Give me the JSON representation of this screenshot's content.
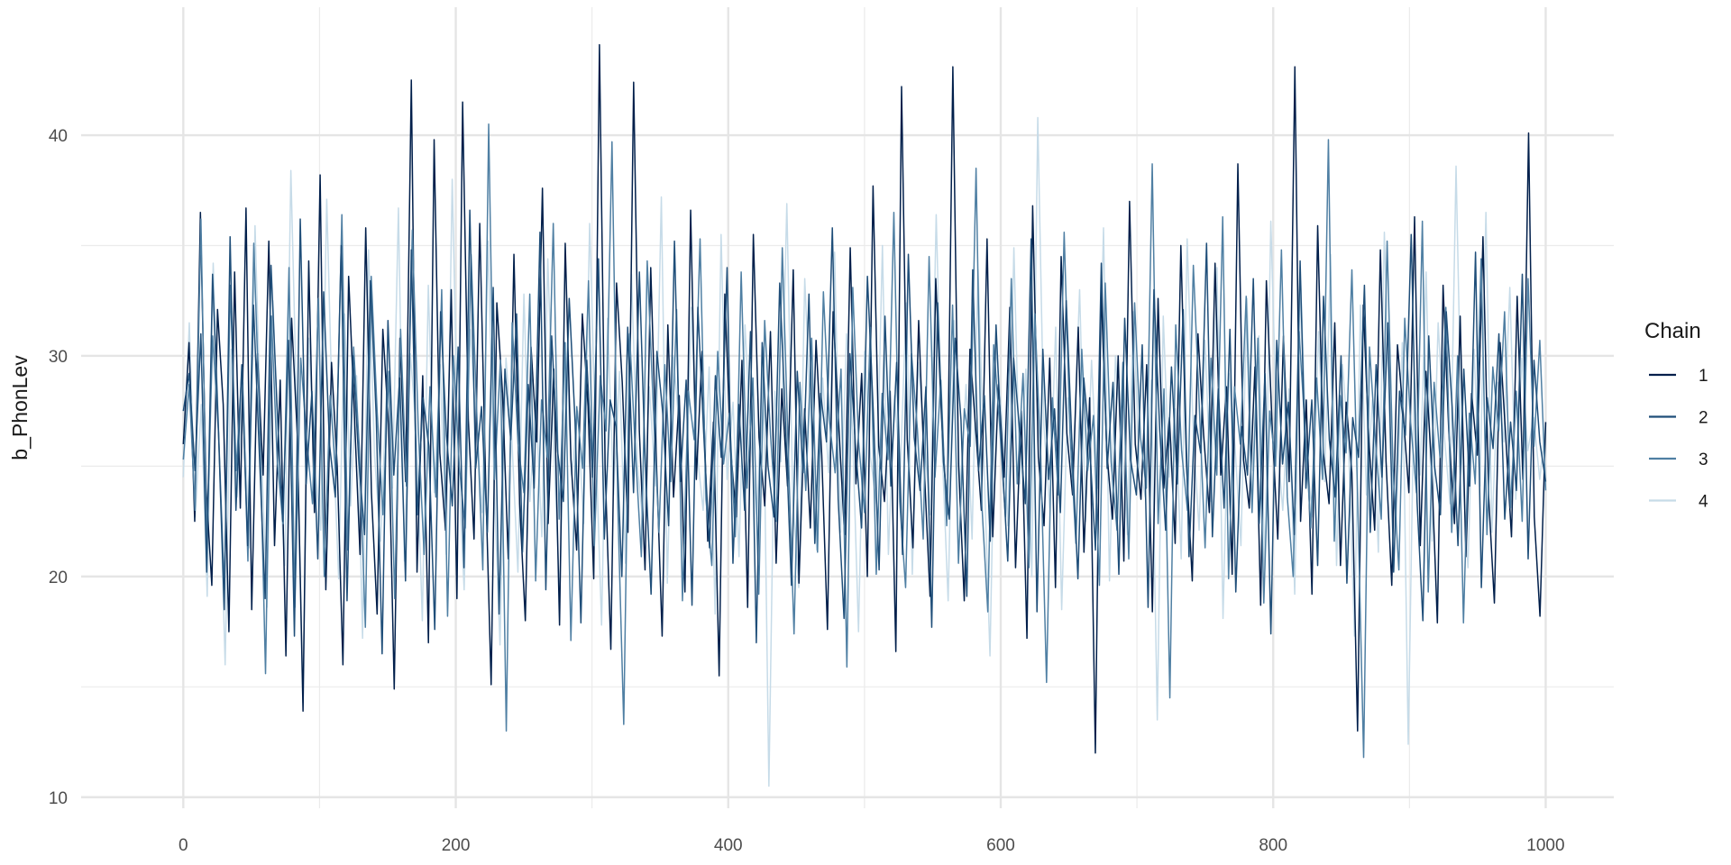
{
  "chart_data": {
    "type": "line",
    "title": "",
    "xlabel": "",
    "ylabel": "b_PhonLev",
    "xlim": [
      -75,
      1050
    ],
    "ylim": [
      9.5,
      45.8
    ],
    "x_ticks": [
      0,
      200,
      400,
      600,
      800,
      1000
    ],
    "x_tick_labels": [
      "0",
      "200",
      "400",
      "600",
      "800",
      "1000"
    ],
    "x_minor_ticks": [
      100,
      300,
      500,
      700,
      900
    ],
    "y_ticks": [
      10,
      20,
      30,
      40
    ],
    "y_tick_labels": [
      "10",
      "20",
      "30",
      "40"
    ],
    "y_minor_ticks": [
      15,
      25,
      35
    ],
    "grid": true,
    "legend": {
      "title": "Chain",
      "placement": "right"
    },
    "draw_order": [
      3,
      0,
      2,
      1
    ],
    "series": [
      {
        "name": "1",
        "color": "#011f4b",
        "values": [
          26.0,
          30.6,
          22.5,
          36.5,
          24.0,
          19.6,
          32.1,
          27.8,
          17.5,
          33.8,
          23.1,
          36.7,
          18.5,
          30.1,
          24.6,
          35.2,
          21.4,
          28.9,
          16.4,
          31.7,
          26.4,
          13.9,
          34.3,
          22.9,
          38.2,
          19.4,
          29.7,
          25.0,
          16.0,
          33.6,
          27.4,
          21.0,
          35.8,
          23.8,
          18.3,
          31.2,
          26.9,
          14.9,
          30.8,
          24.3,
          42.5,
          20.2,
          29.1,
          17.0,
          39.8,
          25.6,
          22.1,
          33.0,
          19.0,
          41.5,
          27.1,
          21.7,
          36.0,
          24.7,
          15.1,
          32.4,
          28.3,
          20.8,
          34.6,
          23.3,
          18.0,
          30.4,
          26.1,
          37.6,
          22.4,
          29.4,
          17.8,
          35.1,
          25.3,
          21.2,
          31.9,
          27.7,
          19.9,
          44.1,
          24.9,
          16.7,
          33.3,
          28.8,
          22.0,
          42.4,
          26.6,
          20.3,
          34.0,
          25.2,
          17.3,
          31.4,
          23.6,
          28.2,
          19.3,
          36.6,
          24.4,
          30.2,
          21.6,
          27.0,
          15.5,
          32.8,
          25.8,
          22.7,
          29.8,
          18.6,
          35.5,
          26.3,
          23.2,
          31.1,
          20.6,
          28.5,
          24.1,
          33.9,
          19.7,
          27.6,
          22.2,
          30.7,
          25.5,
          17.6,
          32.0,
          26.8,
          21.9,
          34.9,
          24.2,
          29.2,
          20.0,
          37.7,
          25.9,
          23.4,
          28.4,
          16.6,
          42.2,
          26.2,
          21.3,
          31.6,
          24.8,
          19.1,
          33.5,
          27.3,
          22.8,
          43.1,
          25.1,
          18.9,
          30.3,
          26.7,
          23.0,
          35.3,
          21.8,
          28.7,
          24.5,
          32.2,
          20.4,
          27.5,
          17.2,
          36.8,
          25.4,
          22.3,
          29.9,
          19.5,
          34.5,
          26.5,
          23.7,
          31.3,
          21.1,
          28.1,
          12.0,
          33.1,
          25.7,
          22.6,
          30.0,
          20.7,
          37.0,
          26.0,
          23.5,
          29.6,
          18.4,
          32.6,
          24.0,
          27.2,
          21.5,
          35.0,
          25.0,
          19.8,
          31.0,
          26.4,
          22.9,
          34.2,
          24.6,
          28.6,
          20.1,
          38.7,
          25.3,
          23.1,
          29.5,
          18.7,
          33.4,
          26.9,
          21.7,
          30.9,
          24.3,
          43.1,
          22.5,
          28.0,
          19.2,
          35.9,
          25.6,
          23.3,
          31.5,
          20.5,
          27.9,
          24.7,
          13.0,
          32.3,
          26.1,
          22.1,
          34.8,
          25.2,
          19.6,
          30.5,
          27.4,
          23.8,
          36.3,
          21.4,
          29.3,
          24.9,
          17.9,
          33.2,
          26.6,
          22.4,
          31.8,
          20.9,
          28.3,
          25.5,
          35.4,
          23.6,
          18.8,
          30.6,
          26.3,
          21.8,
          32.7,
          24.4,
          40.1,
          22.7,
          18.2,
          27.0
        ]
      },
      {
        "name": "2",
        "color": "#1f4e79",
        "values": [
          27.5,
          29.2,
          24.8,
          31.0,
          20.2,
          33.7,
          26.7,
          18.5,
          35.4,
          23.0,
          29.6,
          21.4,
          32.3,
          25.6,
          19.0,
          34.1,
          27.9,
          22.5,
          30.7,
          17.3,
          36.2,
          24.2,
          28.4,
          20.8,
          32.9,
          26.0,
          23.6,
          35.0,
          18.9,
          30.0,
          25.3,
          21.9,
          33.4,
          27.2,
          16.5,
          31.6,
          24.6,
          29.0,
          19.8,
          34.8,
          22.8,
          28.1,
          25.9,
          17.6,
          32.0,
          26.4,
          23.2,
          30.4,
          20.4,
          36.6,
          24.9,
          27.7,
          22.0,
          33.1,
          18.3,
          29.4,
          26.2,
          31.9,
          21.1,
          28.7,
          24.0,
          35.6,
          19.4,
          30.9,
          25.7,
          23.4,
          32.6,
          27.0,
          17.9,
          29.8,
          24.5,
          34.4,
          21.7,
          28.0,
          26.8,
          20.0,
          31.3,
          23.8,
          33.8,
          25.1,
          19.2,
          30.2,
          27.4,
          22.3,
          35.2,
          24.3,
          28.9,
          18.7,
          32.2,
          26.5,
          21.3,
          29.1,
          25.4,
          34.0,
          20.6,
          27.8,
          23.0,
          31.1,
          17.0,
          30.6,
          25.0,
          22.7,
          33.3,
          26.9,
          19.6,
          29.3,
          24.7,
          32.8,
          21.5,
          28.3,
          26.1,
          35.8,
          23.5,
          18.1,
          30.1,
          25.8,
          22.2,
          33.6,
          27.5,
          20.3,
          31.8,
          24.1,
          29.7,
          21.0,
          34.6,
          26.3,
          23.9,
          28.6,
          17.7,
          32.4,
          25.2,
          22.6,
          30.8,
          27.1,
          19.1,
          33.9,
          24.8,
          28.2,
          21.6,
          31.4,
          25.5,
          20.7,
          29.9,
          26.7,
          23.3,
          35.3,
          18.4,
          30.3,
          24.4,
          27.6,
          22.9,
          32.5,
          25.9,
          19.9,
          29.0,
          26.0,
          21.2,
          34.2,
          24.9,
          28.8,
          20.1,
          31.7,
          25.3,
          23.7,
          30.5,
          18.6,
          33.0,
          26.6,
          22.1,
          29.5,
          24.2,
          32.1,
          20.9,
          27.3,
          25.6,
          35.1,
          21.8,
          28.5,
          23.1,
          31.2,
          19.3,
          26.8,
          24.6,
          33.5,
          22.4,
          29.2,
          17.4,
          30.7,
          25.1,
          27.9,
          21.9,
          34.3,
          24.0,
          28.0,
          20.5,
          32.7,
          26.2,
          23.6,
          30.0,
          19.7,
          27.2,
          25.4,
          33.2,
          22.0,
          29.6,
          24.5,
          31.5,
          20.2,
          28.4,
          26.4,
          35.5,
          23.4,
          18.0,
          30.9,
          25.0,
          22.8,
          32.0,
          27.7,
          21.4,
          29.4,
          24.1,
          34.7,
          19.5,
          28.1,
          25.8,
          31.0,
          22.6,
          27.0,
          23.9,
          33.7,
          20.8,
          29.8,
          26.1,
          24.3
        ]
      },
      {
        "name": "3",
        "color": "#4f7fa3",
        "values": [
          25.3,
          28.7,
          23.0,
          36.2,
          21.6,
          30.9,
          26.5,
          19.4,
          33.2,
          24.8,
          29.5,
          20.7,
          35.1,
          27.0,
          15.6,
          31.8,
          25.2,
          22.4,
          34.0,
          18.6,
          29.9,
          26.3,
          23.3,
          32.6,
          20.0,
          28.2,
          24.6,
          36.4,
          21.2,
          30.4,
          25.7,
          17.7,
          33.6,
          27.5,
          22.8,
          29.3,
          19.0,
          31.2,
          24.1,
          35.7,
          26.8,
          21.0,
          28.6,
          23.6,
          33.0,
          18.2,
          30.0,
          25.0,
          22.2,
          34.6,
          27.2,
          20.3,
          40.5,
          24.4,
          29.8,
          13.0,
          31.5,
          26.0,
          23.8,
          32.8,
          19.8,
          28.0,
          25.4,
          36.0,
          22.6,
          30.6,
          17.1,
          27.7,
          24.9,
          33.4,
          21.4,
          29.1,
          26.6,
          39.7,
          23.1,
          13.3,
          31.0,
          25.6,
          20.9,
          34.3,
          27.9,
          22.0,
          29.6,
          24.3,
          32.1,
          18.9,
          28.4,
          26.2,
          35.3,
          23.5,
          20.5,
          30.2,
          25.1,
          27.4,
          21.8,
          33.8,
          24.0,
          29.0,
          19.2,
          31.6,
          26.4,
          22.5,
          34.9,
          25.8,
          17.4,
          28.8,
          23.9,
          30.8,
          21.1,
          32.9,
          27.1,
          24.7,
          29.4,
          15.9,
          33.1,
          26.1,
          22.9,
          31.3,
          20.1,
          28.3,
          25.3,
          36.5,
          23.4,
          19.5,
          30.1,
          26.7,
          21.7,
          34.5,
          24.5,
          28.9,
          22.3,
          32.3,
          20.6,
          27.6,
          25.9,
          38.5,
          23.2,
          18.4,
          30.5,
          26.9,
          22.7,
          33.5,
          24.2,
          29.2,
          20.4,
          31.9,
          25.5,
          15.2,
          28.1,
          23.7,
          35.6,
          26.5,
          21.5,
          30.3,
          24.8,
          27.3,
          19.6,
          33.3,
          25.2,
          22.1,
          29.7,
          20.8,
          32.4,
          26.3,
          24.0,
          38.7,
          22.4,
          28.5,
          14.5,
          31.4,
          25.7,
          23.0,
          34.1,
          27.8,
          21.3,
          29.9,
          24.6,
          36.3,
          19.9,
          28.6,
          26.0,
          32.7,
          22.9,
          30.8,
          18.8,
          27.5,
          25.0,
          34.8,
          23.6,
          20.0,
          31.1,
          26.8,
          22.2,
          29.0,
          24.4,
          39.8,
          21.6,
          28.2,
          25.6,
          33.9,
          23.3,
          11.8,
          30.4,
          26.2,
          22.6,
          35.2,
          24.9,
          20.3,
          31.7,
          27.0,
          23.8,
          36.1,
          19.3,
          28.8,
          25.4,
          32.2,
          22.0,
          30.0,
          17.9,
          27.4,
          24.2,
          34.4,
          21.9,
          29.5,
          26.6,
          32.0,
          23.1,
          28.4,
          22.5,
          33.5,
          25.9,
          30.7,
          23.9
        ]
      },
      {
        "name": "4",
        "color": "#c6dbe8",
        "values": [
          24.5,
          31.5,
          22.7,
          27.8,
          19.1,
          34.2,
          25.9,
          16.0,
          30.3,
          23.6,
          28.8,
          21.3,
          35.9,
          26.2,
          18.6,
          32.5,
          24.8,
          20.5,
          38.4,
          27.3,
          14.3,
          30.8,
          25.1,
          22.1,
          37.1,
          26.7,
          19.9,
          31.9,
          23.2,
          29.1,
          17.2,
          34.8,
          25.5,
          21.6,
          28.3,
          24.0,
          36.7,
          20.7,
          30.1,
          26.5,
          18.0,
          33.2,
          23.8,
          29.6,
          21.0,
          38.0,
          25.3,
          19.4,
          31.2,
          27.0,
          22.9,
          35.2,
          24.3,
          16.9,
          29.9,
          26.1,
          20.2,
          32.8,
          23.4,
          28.0,
          21.8,
          34.4,
          25.8,
          19.0,
          30.6,
          24.6,
          27.5,
          22.4,
          36.0,
          26.4,
          17.8,
          31.7,
          23.7,
          29.3,
          20.6,
          33.7,
          25.0,
          22.2,
          28.6,
          24.1,
          37.2,
          19.7,
          30.0,
          26.8,
          21.5,
          32.2,
          25.6,
          23.0,
          29.5,
          18.3,
          35.5,
          24.4,
          27.9,
          20.9,
          31.4,
          26.0,
          22.6,
          30.4,
          10.5,
          28.4,
          25.2,
          36.9,
          23.5,
          19.5,
          33.5,
          27.2,
          21.2,
          29.0,
          24.7,
          34.7,
          22.0,
          31.0,
          26.6,
          17.5,
          30.2,
          25.4,
          23.3,
          35.0,
          21.0,
          28.2,
          24.9,
          32.4,
          20.1,
          29.7,
          26.3,
          22.8,
          36.4,
          25.7,
          18.9,
          31.6,
          23.9,
          28.7,
          21.7,
          33.9,
          25.1,
          16.4,
          30.5,
          27.1,
          22.3,
          34.9,
          24.2,
          29.4,
          20.0,
          40.8,
          26.9,
          23.1,
          31.3,
          18.5,
          28.1,
          25.5,
          33.0,
          22.5,
          29.8,
          24.0,
          35.8,
          19.8,
          30.0,
          26.2,
          21.9,
          32.0,
          25.0,
          23.6,
          28.9,
          13.5,
          31.8,
          24.5,
          27.6,
          20.8,
          35.3,
          26.7,
          22.1,
          30.7,
          23.4,
          34.0,
          18.1,
          29.2,
          25.9,
          21.4,
          32.6,
          24.8,
          30.9,
          20.3,
          36.1,
          26.4,
          23.0,
          28.5,
          19.2,
          33.4,
          25.3,
          22.7,
          31.1,
          24.3,
          34.6,
          20.5,
          29.6,
          26.0,
          17.3,
          32.3,
          23.7,
          28.0,
          21.1,
          35.6,
          25.6,
          22.4,
          30.6,
          12.4,
          29.1,
          24.6,
          33.8,
          21.6,
          31.5,
          26.5,
          23.3,
          38.6,
          25.2,
          20.4,
          30.3,
          24.1,
          36.5,
          22.0,
          28.8,
          26.1,
          33.1,
          23.5,
          29.9,
          25.7,
          27.2,
          24.4,
          26.8
        ]
      }
    ]
  }
}
